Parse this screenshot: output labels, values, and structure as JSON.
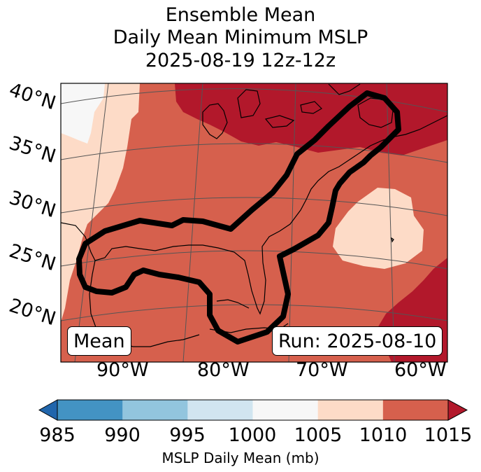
{
  "title": {
    "line1": "Ensemble Mean",
    "line2": "Daily Mean Minimum MSLP",
    "line3": "2025-08-19 12z-12z"
  },
  "map": {
    "lat_labels": [
      "40°N",
      "35°N",
      "30°N",
      "25°N",
      "20°N"
    ],
    "lon_labels": [
      "90°W",
      "80°W",
      "70°W",
      "60°W"
    ],
    "left_box": "Mean",
    "right_box": "Run: 2025-08-10",
    "contour_color": "#000000",
    "coastline_color": "#000000",
    "graticule_color": "#555555"
  },
  "colorbar": {
    "ticks": [
      "985",
      "990",
      "995",
      "1000",
      "1005",
      "1010",
      "1015"
    ],
    "colors": [
      "#2166ac",
      "#4393c3",
      "#92c5de",
      "#d1e5f0",
      "#f7f7f7",
      "#fddbc7",
      "#d6604d",
      "#b2182b"
    ],
    "label": "MSLP Daily Mean (mb)"
  }
}
